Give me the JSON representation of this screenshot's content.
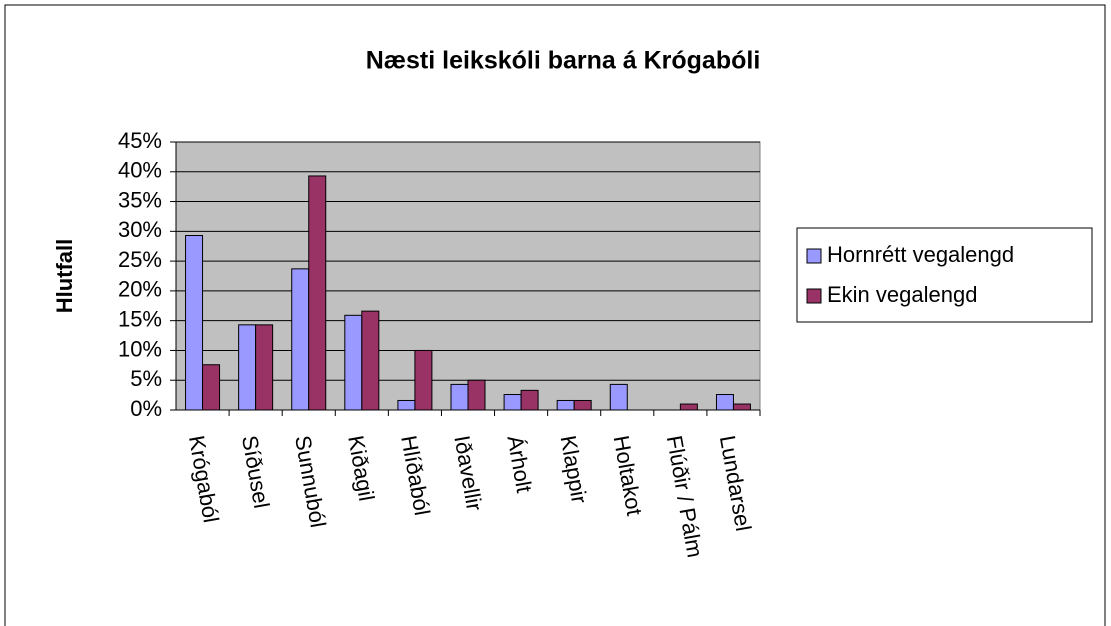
{
  "chart_data": {
    "type": "bar",
    "title": "Næsti leikskóli barna á Krógabóli",
    "y_label": "Hlutfall",
    "categories": [
      "Krógaból",
      "Síðusel",
      "Sunnuból",
      "Kiðagil",
      "Hlíðaból",
      "Iðavellir",
      "Árholt",
      "Klappir",
      "Holtakot",
      "Flúðir / Pálm",
      "Lundarsel"
    ],
    "series": [
      {
        "name": "Hornrétt vegalengd",
        "color": "#9999ff",
        "values": [
          29.3,
          14.3,
          23.7,
          15.9,
          1.6,
          4.3,
          2.6,
          1.6,
          4.3,
          0,
          2.6
        ]
      },
      {
        "name": "Ekin vegalengd",
        "color": "#993366",
        "values": [
          7.6,
          14.3,
          39.3,
          16.6,
          10.0,
          5.0,
          3.3,
          1.6,
          0,
          1.0,
          1.0
        ]
      }
    ],
    "ylim": [
      0,
      45
    ],
    "yticks": [
      {
        "value": 0,
        "label": "0%"
      },
      {
        "value": 5,
        "label": "5%"
      },
      {
        "value": 10,
        "label": "10%"
      },
      {
        "value": 15,
        "label": "15%"
      },
      {
        "value": 20,
        "label": "20%"
      },
      {
        "value": 25,
        "label": "25%"
      },
      {
        "value": 30,
        "label": "30%"
      },
      {
        "value": 35,
        "label": "35%"
      },
      {
        "value": 40,
        "label": "40%"
      },
      {
        "value": 45,
        "label": "45%"
      }
    ],
    "grid": true,
    "legend": "right",
    "plot_background": "#c0c0c0"
  }
}
